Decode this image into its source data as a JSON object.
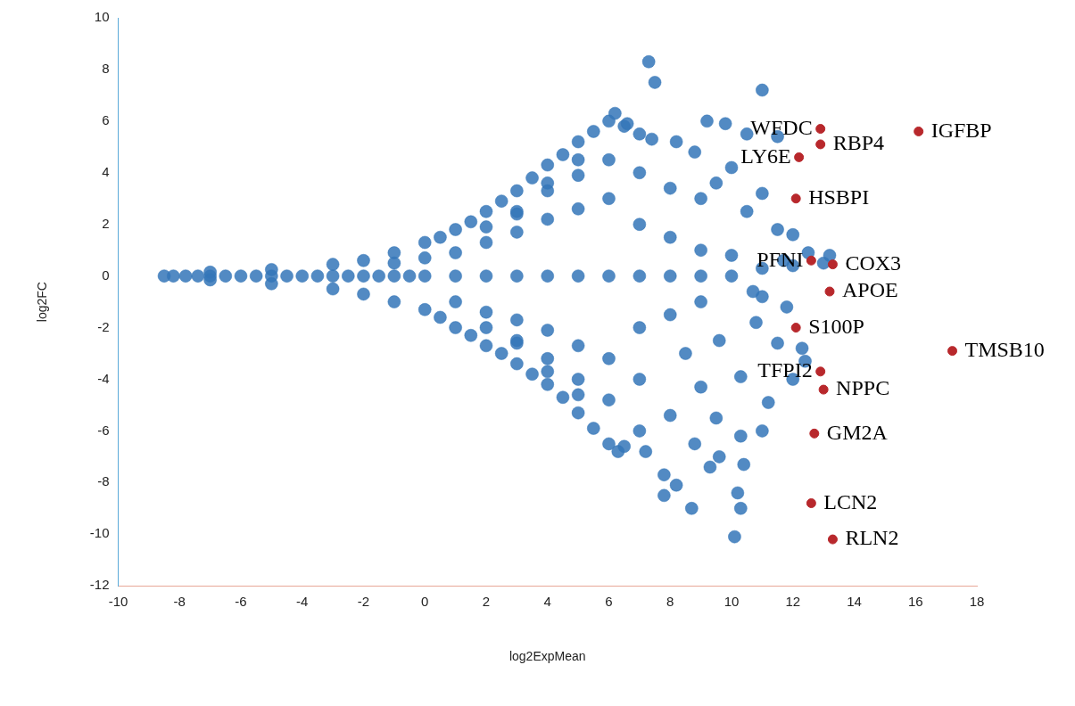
{
  "chart_data": {
    "type": "scatter",
    "xlabel": "log2ExpMean",
    "ylabel": "log2FC",
    "xlim": [
      -10,
      18
    ],
    "ylim": [
      -12,
      10
    ],
    "xticks": [
      -10,
      -8,
      -6,
      -4,
      -2,
      0,
      2,
      4,
      6,
      8,
      10,
      12,
      14,
      16,
      18
    ],
    "yticks": [
      -12,
      -10,
      -8,
      -6,
      -4,
      -2,
      0,
      2,
      4,
      6,
      8,
      10
    ],
    "marker": "circle",
    "series": [
      {
        "color": "#3475b8",
        "x": [
          -8.5,
          -8.2,
          -7.8,
          -7.4,
          -7,
          -6.5,
          -6,
          -5.5,
          -5,
          -4.5,
          -4,
          -3.5,
          -3,
          -2.5,
          -2,
          -1.5,
          -1,
          -0.5,
          0,
          1,
          2,
          3,
          4,
          5,
          6,
          7,
          8,
          9,
          10,
          11,
          12,
          13,
          -7,
          -5,
          -3,
          -2,
          -1,
          0,
          0.5,
          1,
          1.5,
          2,
          2.5,
          3,
          3.5,
          4,
          4.5,
          5,
          5.5,
          6,
          6.5,
          7,
          -7,
          -5,
          -3,
          -2,
          -1,
          0,
          0.5,
          1,
          1.5,
          2,
          2.5,
          3,
          3.5,
          4,
          4.5,
          5,
          5.5,
          6,
          6.5,
          7,
          -1,
          0,
          1,
          2,
          3,
          4,
          5,
          6,
          1,
          2,
          3,
          4,
          5,
          6,
          3,
          4,
          5,
          6,
          3,
          4,
          5,
          6,
          2,
          3,
          4,
          5,
          2,
          3,
          4,
          5,
          7,
          7,
          8,
          8,
          7,
          7,
          9,
          9,
          10,
          11,
          7.3,
          7.5,
          11,
          9.2,
          8.2,
          9.8,
          10.5,
          11.5,
          8.8,
          10,
          9.5,
          11,
          10.5,
          11.5,
          12,
          9,
          8,
          12.5,
          11.8,
          10.8,
          9.6,
          8.5,
          11.5,
          12.3,
          9,
          10.3,
          11.2,
          8,
          9.5,
          10.3,
          8.8,
          9.3,
          7.8,
          8.2,
          7.8,
          8.7,
          10.2,
          10.3,
          10.1,
          10.4,
          9.6,
          7.2,
          12,
          11,
          12.4,
          10.7,
          11.7,
          13.2,
          6.2,
          6.6,
          6.3,
          7.4
        ],
        "values": [
          0,
          0,
          0,
          0,
          0,
          0,
          0,
          0,
          0,
          0,
          0,
          0,
          0,
          0,
          0,
          0,
          0,
          0,
          0,
          0,
          0,
          0,
          0,
          0,
          0,
          0,
          0,
          0,
          0,
          0.3,
          0.4,
          0.5,
          0.15,
          0.25,
          0.45,
          0.6,
          0.9,
          1.3,
          1.5,
          1.8,
          2.1,
          2.5,
          2.9,
          3.3,
          3.8,
          4.3,
          4.7,
          5.2,
          5.6,
          6,
          5.8,
          5.5,
          -0.15,
          -0.3,
          -0.5,
          -0.7,
          -1,
          -1.3,
          -1.6,
          -2,
          -2.3,
          -2.7,
          -3,
          -3.4,
          -3.8,
          -4.2,
          -4.7,
          -5.3,
          -5.9,
          -6.5,
          -6.6,
          -6,
          0.5,
          0.7,
          0.9,
          1.3,
          1.7,
          2.2,
          2.6,
          3,
          -1,
          -1.4,
          -1.7,
          -2.1,
          -2.7,
          -3.2,
          2.5,
          3.3,
          3.9,
          4.5,
          -2.5,
          -3.2,
          -4,
          -4.8,
          1.9,
          2.4,
          3.6,
          4.5,
          -2,
          -2.6,
          -3.7,
          -4.6,
          2,
          -2,
          1.5,
          -1.5,
          4,
          -4,
          1,
          -1,
          0.8,
          -0.8,
          8.3,
          7.5,
          7.2,
          6,
          5.2,
          5.9,
          5.5,
          5.4,
          4.8,
          4.2,
          3.6,
          3.2,
          2.5,
          1.8,
          1.6,
          3,
          3.4,
          0.9,
          -1.2,
          -1.8,
          -2.5,
          -3,
          -2.6,
          -2.8,
          -4.3,
          -3.9,
          -4.9,
          -5.4,
          -5.5,
          -6.2,
          -6.5,
          -7.4,
          -7.7,
          -8.1,
          -8.5,
          -9,
          -8.4,
          -9,
          -10.1,
          -7.3,
          -7,
          -6.8,
          -4,
          -6,
          -3.3,
          -0.6,
          0.6,
          0.8,
          6.3,
          5.9,
          -6.8,
          5.3
        ]
      },
      {
        "color": "#b8282c",
        "x": [
          12.9,
          12.9,
          12.2,
          16.1,
          12.1,
          12.6,
          13.3,
          13.2,
          12.1,
          17.2,
          12.9,
          13.0,
          12.7,
          12.6,
          13.3
        ],
        "values": [
          5.7,
          5.1,
          4.6,
          5.6,
          3.0,
          0.6,
          0.45,
          -0.6,
          -2.0,
          -2.9,
          -3.7,
          -4.4,
          -6.1,
          -8.8,
          -10.2
        ]
      }
    ],
    "annotations": [
      {
        "text": "WFDC",
        "x": 12.9,
        "y": 5.7
      },
      {
        "text": "RBP4",
        "x": 12.9,
        "y": 5.1
      },
      {
        "text": "LY6E",
        "x": 12.2,
        "y": 4.6
      },
      {
        "text": "IGFBP",
        "x": 16.1,
        "y": 5.6
      },
      {
        "text": "HSBPI",
        "x": 12.1,
        "y": 3.0
      },
      {
        "text": "PFNI",
        "x": 12.6,
        "y": 0.6
      },
      {
        "text": "COX3",
        "x": 13.3,
        "y": 0.45
      },
      {
        "text": "APOE",
        "x": 13.2,
        "y": -0.6
      },
      {
        "text": "S100P",
        "x": 12.1,
        "y": -2.0
      },
      {
        "text": "TMSB10",
        "x": 17.2,
        "y": -2.9
      },
      {
        "text": "TFPI2",
        "x": 12.9,
        "y": -3.7
      },
      {
        "text": "NPPC",
        "x": 13.0,
        "y": -4.4
      },
      {
        "text": "GM2A",
        "x": 12.7,
        "y": -6.1
      },
      {
        "text": "LCN2",
        "x": 12.6,
        "y": -8.8
      },
      {
        "text": "RLN2",
        "x": 13.3,
        "y": -10.2
      }
    ]
  }
}
